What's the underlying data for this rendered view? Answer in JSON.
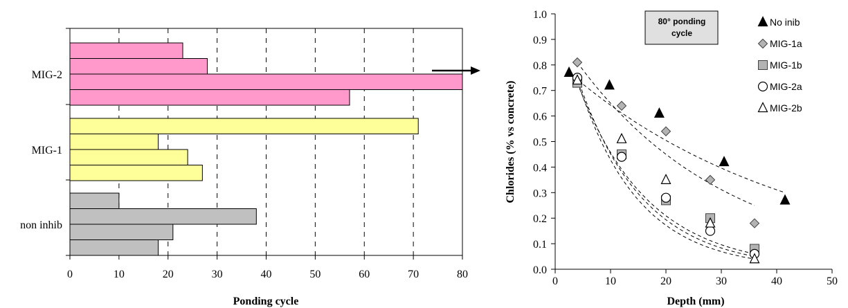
{
  "colors": {
    "mig2": "#ff99cc",
    "mig1": "#ffff99",
    "non_inhib": "#c0c0c0",
    "no_inib_marker": "#000000",
    "mig1a_marker": "#b3b3b3",
    "mig1b_marker": "#b3b3b3",
    "open_marker": "#ffffff"
  },
  "chart_data": [
    {
      "type": "bar",
      "orientation": "horizontal",
      "title": "",
      "xlabel": "Ponding cycle",
      "ylabel": "",
      "xlim": [
        0,
        80
      ],
      "x_ticks": [
        "0",
        "10",
        "20",
        "30",
        "40",
        "50",
        "60",
        "70",
        "80"
      ],
      "grid": "vertical-dashed",
      "annotation": "arrow beyond axis maximum on longest MIG-2 bar",
      "groups": [
        {
          "name": "MIG-2",
          "color_key": "mig2",
          "values": [
            23,
            28,
            80,
            57
          ]
        },
        {
          "name": "MIG-1",
          "color_key": "mig1",
          "values": [
            71,
            18,
            24,
            27
          ]
        },
        {
          "name": "non inhib",
          "color_key": "non_inhib",
          "values": [
            10,
            38,
            21,
            18
          ]
        }
      ]
    },
    {
      "type": "scatter",
      "title": "80° ponding cycle",
      "xlabel": "Depth (mm)",
      "ylabel": "Chlorides (% vs concrete)",
      "xlim": [
        0,
        50
      ],
      "ylim": [
        0,
        1.0
      ],
      "x_ticks": [
        "0",
        "10",
        "20",
        "30",
        "40",
        "50"
      ],
      "y_ticks": [
        "0.0",
        "0.1",
        "0.2",
        "0.3",
        "0.4",
        "0.5",
        "0.6",
        "0.7",
        "0.8",
        "0.9",
        "1.0"
      ],
      "legend_position": "top-right",
      "trendlines": "dashed",
      "series": [
        {
          "name": "No inib",
          "marker": "triangle-filled",
          "x": [
            2.5,
            9.8,
            18.8,
            30.5,
            41.5
          ],
          "y": [
            0.77,
            0.72,
            0.61,
            0.42,
            0.27
          ],
          "trend_end": [
            41.5,
            0.3
          ]
        },
        {
          "name": "MIG-1a",
          "marker": "diamond-gray",
          "x": [
            4,
            12,
            20,
            28,
            36
          ],
          "y": [
            0.81,
            0.64,
            0.54,
            0.35,
            0.18
          ],
          "trend_end": [
            36,
            0.25
          ]
        },
        {
          "name": "MIG-1b",
          "marker": "square-gray",
          "x": [
            4,
            12,
            20,
            28,
            36
          ],
          "y": [
            0.73,
            0.45,
            0.27,
            0.2,
            0.08
          ],
          "trend_end": [
            36,
            0.06
          ]
        },
        {
          "name": "MIG-2a",
          "marker": "circle-open",
          "x": [
            4,
            12,
            20,
            28,
            36
          ],
          "y": [
            0.75,
            0.44,
            0.28,
            0.15,
            0.06
          ],
          "trend_end": [
            36,
            0.05
          ]
        },
        {
          "name": "MIG-2b",
          "marker": "triangle-open",
          "x": [
            4,
            12,
            20,
            28,
            36
          ],
          "y": [
            0.74,
            0.51,
            0.35,
            0.18,
            0.04
          ],
          "trend_end": [
            36,
            0.04
          ]
        }
      ]
    }
  ]
}
